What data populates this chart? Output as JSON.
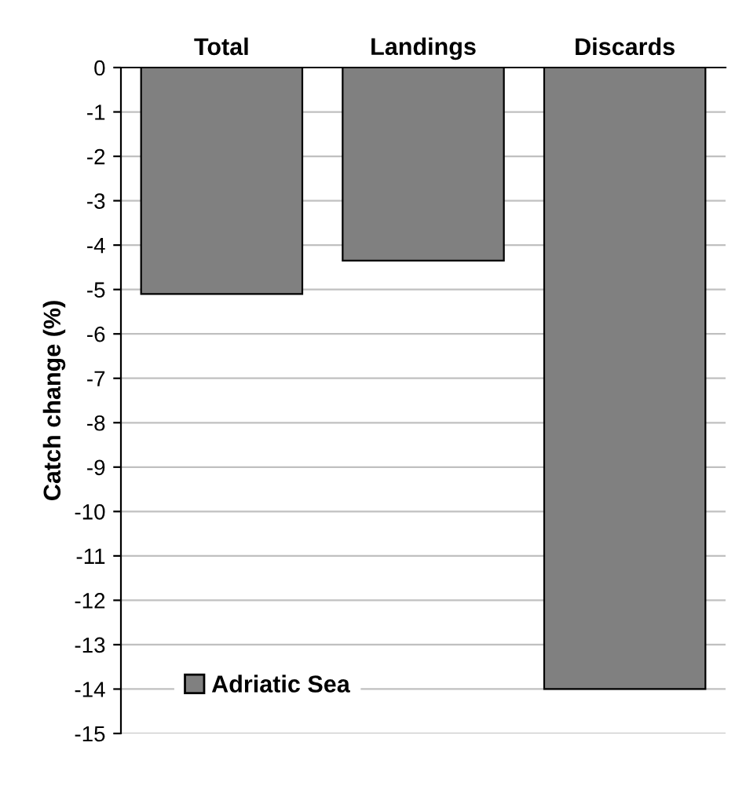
{
  "chart_data": {
    "type": "bar",
    "ylabel": "Catch change (%)",
    "categories": [
      "Total",
      "Landings",
      "Discards"
    ],
    "series": [
      {
        "name": "Adriatic Sea",
        "color": "#808080",
        "values": [
          -5.1,
          -4.35,
          -14.0
        ]
      }
    ],
    "ylim": [
      -15,
      0
    ],
    "yticks": [
      0,
      -1,
      -2,
      -3,
      -4,
      -5,
      -6,
      -7,
      -8,
      -9,
      -10,
      -11,
      -12,
      -13,
      -14,
      -15
    ],
    "grid": "y",
    "legend": "bottom left"
  }
}
